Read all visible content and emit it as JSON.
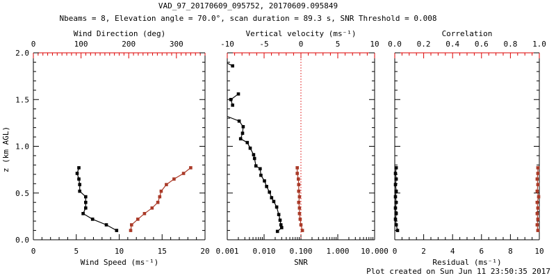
{
  "header": {
    "title": "VAD_97_20170609_095752, 20170609.095849",
    "subtitle": "Nbeams = 8, Elevation angle = 70.0°, scan duration = 89.3 s, SNR Threshold = 0.008"
  },
  "footer": {
    "created": "Plot created on Sun Jun 11 23:50:35 2017"
  },
  "colors": {
    "axis_red": "#dd0000",
    "series_red": "#aa3a28",
    "black": "#000000",
    "background": "#ffffff"
  },
  "y_axis": {
    "label": "z (km AGL)",
    "range": [
      0,
      2
    ],
    "major_ticks": [
      0.0,
      0.5,
      1.0,
      1.5,
      2.0
    ],
    "tick_labels": [
      "0.0",
      "0.5",
      "1.0",
      "1.5",
      "2.0"
    ],
    "minor_step": 0.1
  },
  "chart_data": [
    {
      "id": "wind",
      "type": "line",
      "bottom_axis": {
        "label": "Wind Speed (ms⁻¹)",
        "scale": "linear",
        "range": [
          0,
          20
        ],
        "major_ticks": [
          0,
          5,
          10,
          15,
          20
        ],
        "tick_labels": [
          "0",
          "5",
          "10",
          "15",
          "20"
        ],
        "minor_step": 1
      },
      "top_axis": {
        "label": "Wind Direction (deg)",
        "scale": "linear",
        "range": [
          0,
          360
        ],
        "major_ticks": [
          0,
          100,
          200,
          300
        ],
        "tick_labels": [
          "0",
          "100",
          "200",
          "300"
        ],
        "minor_step": 10
      },
      "series": [
        {
          "name": "wind-speed",
          "axis": "bottom",
          "color": "black",
          "marker": "square",
          "points": [
            [
              9.7,
              0.1
            ],
            [
              8.5,
              0.16
            ],
            [
              6.9,
              0.22
            ],
            [
              5.8,
              0.28
            ],
            [
              6.1,
              0.34
            ],
            [
              6.1,
              0.4
            ],
            [
              6.1,
              0.46
            ],
            [
              5.4,
              0.52
            ],
            [
              5.4,
              0.59
            ],
            [
              5.3,
              0.65
            ],
            [
              5.1,
              0.71
            ],
            [
              5.3,
              0.77
            ]
          ]
        },
        {
          "name": "wind-direction",
          "axis": "top",
          "color": "red",
          "marker": "square",
          "points": [
            [
              204,
              0.1
            ],
            [
              206,
              0.16
            ],
            [
              219,
              0.22
            ],
            [
              233,
              0.28
            ],
            [
              249,
              0.34
            ],
            [
              261,
              0.4
            ],
            [
              265,
              0.46
            ],
            [
              268,
              0.52
            ],
            [
              279,
              0.59
            ],
            [
              295,
              0.65
            ],
            [
              315,
              0.71
            ],
            [
              330,
              0.77
            ]
          ]
        }
      ]
    },
    {
      "id": "snr",
      "type": "line",
      "bottom_axis": {
        "label": "SNR",
        "scale": "log",
        "range": [
          0.001,
          10
        ],
        "major_ticks": [
          0.001,
          0.01,
          0.1,
          1,
          10
        ],
        "tick_labels": [
          "0.001",
          "0.010",
          "0.100",
          "1.000",
          "10.000"
        ]
      },
      "top_axis": {
        "label": "Vertical velocity (ms⁻¹)",
        "scale": "linear",
        "range": [
          -10,
          10
        ],
        "major_ticks": [
          -10,
          -5,
          0,
          5,
          10
        ],
        "tick_labels": [
          "-10",
          "-5",
          "0",
          "5",
          "10"
        ],
        "minor_step": 1
      },
      "reference_line": {
        "axis": "top",
        "value": 0,
        "style": "dotted",
        "color": "red"
      },
      "series": [
        {
          "name": "snr",
          "axis": "bottom",
          "color": "black",
          "marker": "square",
          "segments": [
            {
              "edge_start": true,
              "points": [
                [
                  0.001,
                  1.89
                ],
                [
                  0.0014,
                  1.86
                ]
              ]
            },
            {
              "edge_start": false,
              "points": [
                [
                  0.002,
                  1.56
                ],
                [
                  0.00125,
                  1.5
                ],
                [
                  0.0014,
                  1.44
                ]
              ]
            },
            {
              "edge_start": true,
              "points": [
                [
                  0.001,
                  1.32
                ],
                [
                  0.0021,
                  1.27
                ],
                [
                  0.0027,
                  1.21
                ],
                [
                  0.0026,
                  1.14
                ],
                [
                  0.0023,
                  1.08
                ],
                [
                  0.0035,
                  1.04
                ],
                [
                  0.0042,
                  0.98
                ],
                [
                  0.0052,
                  0.91
                ],
                [
                  0.0055,
                  0.87
                ],
                [
                  0.006,
                  0.79
                ],
                [
                  0.0078,
                  0.76
                ],
                [
                  0.0082,
                  0.69
                ],
                [
                  0.0102,
                  0.63
                ],
                [
                  0.0117,
                  0.57
                ],
                [
                  0.014,
                  0.51
                ],
                [
                  0.016,
                  0.45
                ],
                [
                  0.0183,
                  0.41
                ],
                [
                  0.022,
                  0.35
                ],
                [
                  0.025,
                  0.27
                ],
                [
                  0.0272,
                  0.21
                ],
                [
                  0.0286,
                  0.16
                ],
                [
                  0.03,
                  0.13
                ],
                [
                  0.023,
                  0.09
                ]
              ]
            }
          ]
        },
        {
          "name": "vertical-velocity",
          "axis": "top",
          "color": "red",
          "marker": "square",
          "points": [
            [
              0.2,
              0.1
            ],
            [
              0.0,
              0.16
            ],
            [
              -0.1,
              0.22
            ],
            [
              -0.2,
              0.28
            ],
            [
              -0.2,
              0.34
            ],
            [
              -0.3,
              0.4
            ],
            [
              -0.2,
              0.46
            ],
            [
              -0.3,
              0.52
            ],
            [
              -0.3,
              0.59
            ],
            [
              -0.35,
              0.65
            ],
            [
              -0.5,
              0.71
            ],
            [
              -0.5,
              0.77
            ]
          ]
        }
      ]
    },
    {
      "id": "residual",
      "type": "line",
      "bottom_axis": {
        "label": "Residual (ms⁻¹)",
        "scale": "linear",
        "range": [
          0,
          10
        ],
        "major_ticks": [
          0,
          2,
          4,
          6,
          8,
          10
        ],
        "tick_labels": [
          "0",
          "2",
          "4",
          "6",
          "8",
          "10"
        ],
        "minor_step": 0.5
      },
      "top_axis": {
        "label": "Correlation",
        "scale": "linear",
        "range": [
          0,
          1
        ],
        "major_ticks": [
          0.0,
          0.2,
          0.4,
          0.6,
          0.8,
          1.0
        ],
        "tick_labels": [
          "0.0",
          "0.2",
          "0.4",
          "0.6",
          "0.8",
          "1.0"
        ],
        "minor_step": 0.05
      },
      "series": [
        {
          "name": "residual",
          "axis": "bottom",
          "color": "black",
          "marker": "square",
          "points": [
            [
              0.19,
              0.1
            ],
            [
              0.1,
              0.16
            ],
            [
              0.05,
              0.22
            ],
            [
              0.1,
              0.28
            ],
            [
              0.05,
              0.34
            ],
            [
              0.1,
              0.4
            ],
            [
              0.05,
              0.46
            ],
            [
              0.1,
              0.52
            ],
            [
              0.05,
              0.59
            ],
            [
              0.1,
              0.65
            ],
            [
              0.05,
              0.71
            ],
            [
              0.1,
              0.77
            ]
          ]
        },
        {
          "name": "correlation",
          "axis": "top",
          "color": "red",
          "marker": "square",
          "points": [
            [
              0.99,
              0.1
            ],
            [
              0.985,
              0.16
            ],
            [
              0.99,
              0.22
            ],
            [
              0.985,
              0.28
            ],
            [
              0.99,
              0.34
            ],
            [
              0.985,
              0.4
            ],
            [
              0.995,
              0.46
            ],
            [
              0.985,
              0.52
            ],
            [
              0.99,
              0.59
            ],
            [
              0.985,
              0.65
            ],
            [
              0.99,
              0.71
            ],
            [
              0.99,
              0.77
            ]
          ]
        }
      ]
    }
  ]
}
